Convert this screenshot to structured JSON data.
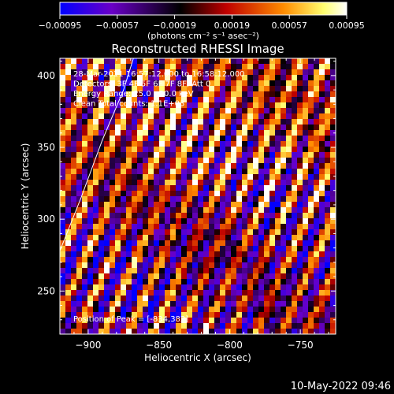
{
  "chart_data": {
    "type": "heatmap",
    "title": "Reconstructed RHESSI Image",
    "xlabel": "Heliocentric X (arcsec)",
    "ylabel": "Heliocentric Y (arcsec)",
    "xlim": [
      -920,
      -725
    ],
    "ylim": [
      220,
      412
    ],
    "xticks": [
      -900,
      -850,
      -800,
      -750
    ],
    "yticks": [
      250,
      300,
      350,
      400
    ],
    "colorbar": {
      "ticks": [
        "-0.00095",
        "-0.00057",
        "-0.00019",
        "0.00019",
        "0.00057",
        "0.00095"
      ],
      "range": [
        -0.00095,
        0.00095
      ],
      "unit_label": "(photons cm⁻² s⁻¹ asec⁻²)",
      "colormap": [
        "#0000ff",
        "#6a00c8",
        "#000000",
        "#c00000",
        "#ff8c00",
        "#ffff70",
        "#ffffff"
      ]
    },
    "pattern": {
      "description_values": {
        "stripe_period_arcsec": 18,
        "stripe_slope_dy_per_dx": 2.2
      }
    },
    "annotations": [
      "28-Mar-2011 16:57:12.000 to 16:58:12.000",
      "Detectors: 3F 4F 5F 6F 7F 8F, Att 0",
      "Energy Range: 25.0 - 50.0 keV",
      "Clean     Total counts: 1.1E+03",
      "Position of Peak = [-834,382]"
    ],
    "limb_arc": [
      [
        -920,
        278
      ],
      [
        -905,
        315
      ],
      [
        -890,
        355
      ],
      [
        -875,
        390
      ],
      [
        -868,
        412
      ]
    ]
  },
  "timestamp": "10-May-2022 09:46"
}
